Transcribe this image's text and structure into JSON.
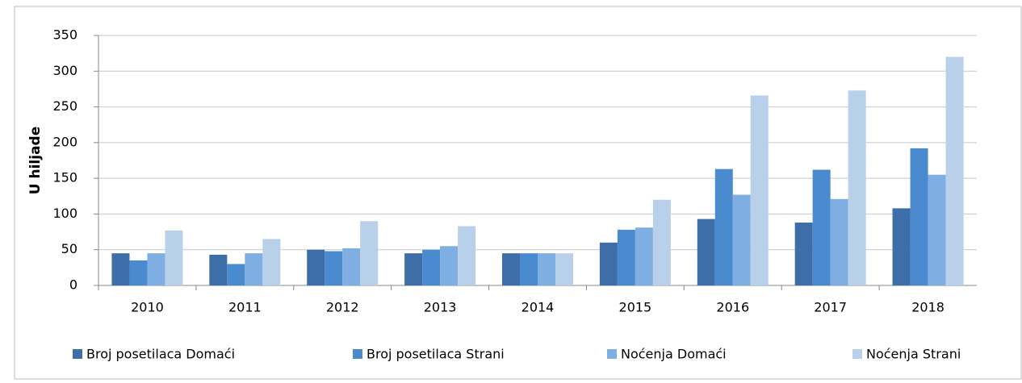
{
  "chart_data": {
    "type": "bar",
    "y_label": "U hiljade",
    "categories": [
      "2010",
      "2011",
      "2012",
      "2013",
      "2014",
      "2015",
      "2016",
      "2017",
      "2018"
    ],
    "series": [
      {
        "name": "Broj posetilaca Domaći",
        "color": "#3e6ea8",
        "values": [
          45,
          43,
          50,
          45,
          45,
          60,
          93,
          88,
          108
        ]
      },
      {
        "name": "Broj posetilaca Strani",
        "color": "#4a8bd0",
        "values": [
          35,
          30,
          48,
          50,
          45,
          78,
          163,
          162,
          192
        ]
      },
      {
        "name": "Noćenja Domaći",
        "color": "#7eaee2",
        "values": [
          45,
          45,
          52,
          55,
          45,
          81,
          127,
          121,
          155
        ]
      },
      {
        "name": "Noćenja Strani",
        "color": "#b9d0ea",
        "values": [
          77,
          65,
          90,
          83,
          45,
          120,
          266,
          273,
          320
        ]
      }
    ],
    "ylim": [
      0,
      350
    ],
    "yticks": [
      0,
      50,
      100,
      150,
      200,
      250,
      300,
      350
    ],
    "grid": true,
    "legend": "bottom"
  }
}
